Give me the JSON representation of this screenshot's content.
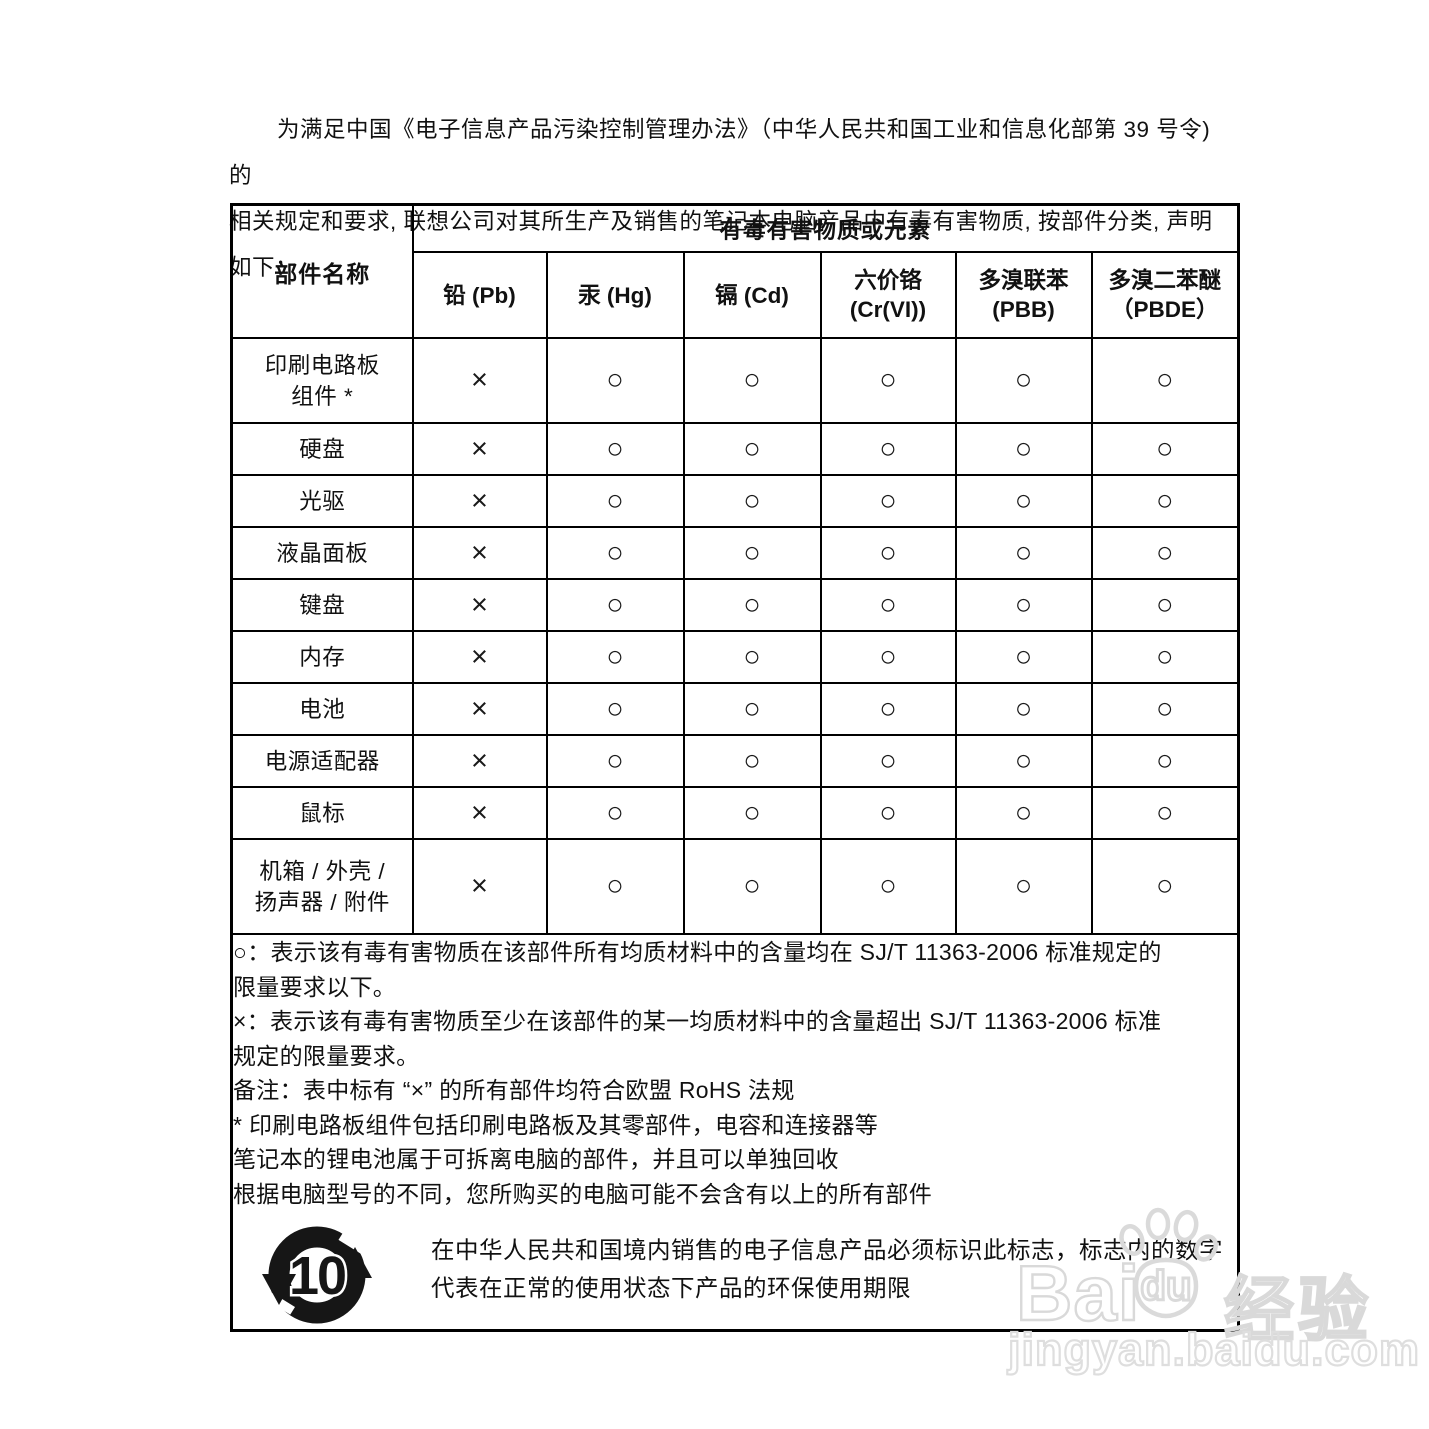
{
  "intro": {
    "lines": [
      "为满足中国《电子信息产品污染控制管理办法》（中华人民共和国工业和信息化部第 39 号令) 的",
      "相关规定和要求, 联想公司对其所生产及销售的笔记本电脑产品中有毒有害物质, 按部件分类, 声明如下："
    ]
  },
  "table": {
    "corner_header": "部件名称",
    "group_header": "有毒有害物质或元素",
    "columns": [
      "铅 (Pb)",
      "汞 (Hg)",
      "镉 (Cd)",
      "六价铬\n(Cr(VI))",
      "多溴联苯\n(PBB)",
      "多溴二苯醚\n（PBDE）"
    ],
    "symbols": {
      "exceed": "×",
      "ok": "○"
    },
    "rows": [
      {
        "name": "印刷电路板\n组件 *",
        "values": [
          "×",
          "○",
          "○",
          "○",
          "○",
          "○"
        ]
      },
      {
        "name": "硬盘",
        "values": [
          "×",
          "○",
          "○",
          "○",
          "○",
          "○"
        ]
      },
      {
        "name": "光驱",
        "values": [
          "×",
          "○",
          "○",
          "○",
          "○",
          "○"
        ]
      },
      {
        "name": "液晶面板",
        "values": [
          "×",
          "○",
          "○",
          "○",
          "○",
          "○"
        ]
      },
      {
        "name": "键盘",
        "values": [
          "×",
          "○",
          "○",
          "○",
          "○",
          "○"
        ]
      },
      {
        "name": "内存",
        "values": [
          "×",
          "○",
          "○",
          "○",
          "○",
          "○"
        ]
      },
      {
        "name": "电池",
        "values": [
          "×",
          "○",
          "○",
          "○",
          "○",
          "○"
        ]
      },
      {
        "name": "电源适配器",
        "values": [
          "×",
          "○",
          "○",
          "○",
          "○",
          "○"
        ]
      },
      {
        "name": "鼠标",
        "values": [
          "×",
          "○",
          "○",
          "○",
          "○",
          "○"
        ]
      },
      {
        "name": "机箱 / 外壳 /\n扬声器 / 附件",
        "values": [
          "×",
          "○",
          "○",
          "○",
          "○",
          "○"
        ]
      }
    ],
    "notes": [
      "○：表示该有毒有害物质在该部件所有均质材料中的含量均在 SJ/T 11363-2006 标准规定的",
      "限量要求以下。",
      "×：表示该有毒有害物质至少在该部件的某一均质材料中的含量超出 SJ/T 11363-2006 标准",
      "规定的限量要求。",
      "备注：表中标有 “×” 的所有部件均符合欧盟 RoHS 法规",
      "* 印刷电路板组件包括印刷电路板及其零部件，电容和连接器等",
      "笔记本的锂电池属于可拆离电脑的部件，并且可以单独回收",
      "根据电脑型号的不同，您所购买的电脑可能不会含有以上的所有部件"
    ]
  },
  "efup": {
    "years": "10",
    "text_lines": [
      "在中华人民共和国境内销售的电子信息产品必须标识此标志，标志内的数字",
      "代表在正常的使用状态下产品的环保使用期限"
    ]
  },
  "watermark": {
    "brand_prefix": "Bai",
    "brand_paw_text": "du",
    "brand_suffix": "经验",
    "url": "jingyan.baidu.com"
  },
  "colors": {
    "ink": "#111111",
    "border": "#000000",
    "watermark": "#d9d9d9"
  }
}
